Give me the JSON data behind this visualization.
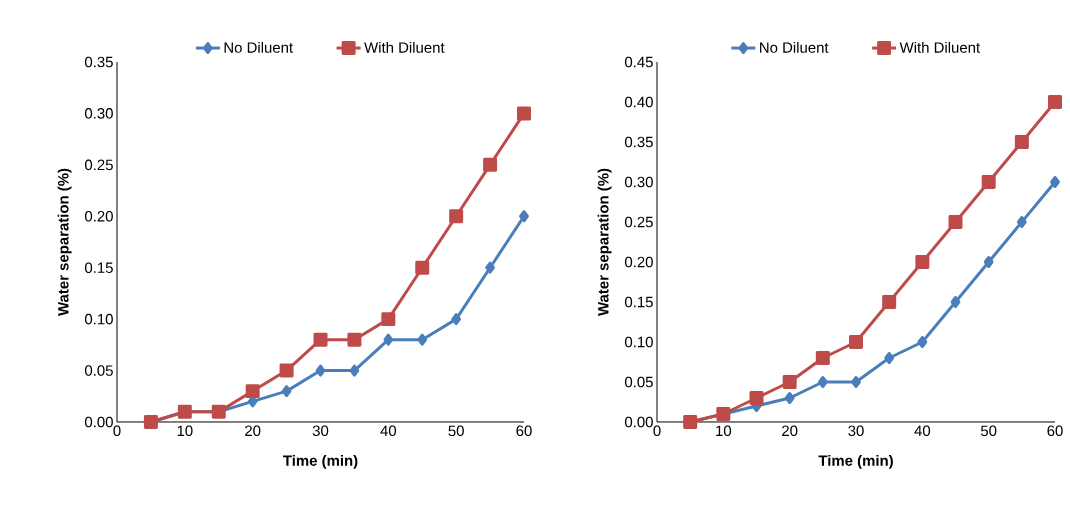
{
  "chart_data": [
    {
      "type": "line",
      "xlabel": "Time (min)",
      "ylabel": "Water separation (%)",
      "x": [
        5,
        10,
        15,
        20,
        25,
        30,
        35,
        40,
        45,
        50,
        55,
        60
      ],
      "series": [
        {
          "name": "No Diluent",
          "color": "#4a7ebb",
          "marker": "diamond",
          "values": [
            0,
            0.01,
            0.01,
            0.02,
            0.03,
            0.05,
            0.05,
            0.08,
            0.08,
            0.1,
            0.15,
            0.2
          ]
        },
        {
          "name": "With Diluent",
          "color": "#be4b48",
          "marker": "square",
          "values": [
            0,
            0.01,
            0.01,
            0.03,
            0.05,
            0.08,
            0.08,
            0.1,
            0.15,
            0.2,
            0.25,
            0.3
          ]
        }
      ],
      "xlim": [
        0,
        60
      ],
      "xticks": [
        0,
        10,
        20,
        30,
        40,
        50,
        60
      ],
      "ylim": [
        0,
        0.35
      ],
      "yticks": [
        {
          "value": 0,
          "label": "0.00"
        },
        {
          "value": 0.05,
          "label": "0.05"
        },
        {
          "value": 0.1,
          "label": "0.10"
        },
        {
          "value": 0.15,
          "label": "0.15"
        },
        {
          "value": 0.2,
          "label": "0.20"
        },
        {
          "value": 0.25,
          "label": "0.25"
        },
        {
          "value": 0.3,
          "label": "0.30"
        },
        {
          "value": 0.35,
          "label": "0.35"
        }
      ],
      "legend": "top",
      "grid": false,
      "line_style": "solid"
    },
    {
      "type": "line",
      "xlabel": "Time (min)",
      "ylabel": "Water separation (%)",
      "x": [
        5,
        10,
        15,
        20,
        25,
        30,
        35,
        40,
        45,
        50,
        55,
        60
      ],
      "series": [
        {
          "name": "No Diluent",
          "color": "#4a7ebb",
          "marker": "diamond",
          "values": [
            0,
            0.01,
            0.02,
            0.03,
            0.05,
            0.05,
            0.08,
            0.1,
            0.15,
            0.2,
            0.25,
            0.3
          ]
        },
        {
          "name": "With Diluent",
          "color": "#be4b48",
          "marker": "square",
          "values": [
            0,
            0.01,
            0.03,
            0.05,
            0.08,
            0.1,
            0.15,
            0.2,
            0.25,
            0.3,
            0.35,
            0.4
          ]
        }
      ],
      "xlim": [
        0,
        60
      ],
      "xticks": [
        0,
        10,
        20,
        30,
        40,
        50,
        60
      ],
      "ylim": [
        0,
        0.45
      ],
      "yticks": [
        {
          "value": 0,
          "label": "0.00"
        },
        {
          "value": 0.05,
          "label": "0.05"
        },
        {
          "value": 0.1,
          "label": "0.10"
        },
        {
          "value": 0.15,
          "label": "0.15"
        },
        {
          "value": 0.2,
          "label": "0.20"
        },
        {
          "value": 0.25,
          "label": "0.25"
        },
        {
          "value": 0.3,
          "label": "0.30"
        },
        {
          "value": 0.35,
          "label": "0.35"
        },
        {
          "value": 0.4,
          "label": "0.40"
        },
        {
          "value": 0.45,
          "label": "0.45"
        }
      ],
      "legend": "top",
      "grid": false,
      "line_style": "solid"
    }
  ]
}
